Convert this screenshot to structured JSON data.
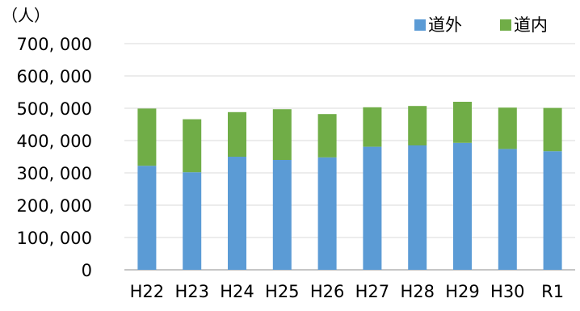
{
  "chart_data": {
    "type": "bar",
    "stacked": true,
    "unit_label": "（人）",
    "categories": [
      "H22",
      "H23",
      "H24",
      "H25",
      "H26",
      "H27",
      "H28",
      "H29",
      "H30",
      "R1"
    ],
    "series": [
      {
        "name": "道外",
        "color": "#5b9bd5",
        "values": [
          322000,
          302000,
          350000,
          340000,
          348000,
          381000,
          385000,
          393000,
          374000,
          367000
        ]
      },
      {
        "name": "道内",
        "color": "#70ad47",
        "values": [
          177000,
          164000,
          138000,
          157000,
          134000,
          122000,
          122000,
          127000,
          128000,
          134000
        ]
      }
    ],
    "ylim": [
      0,
      700000
    ],
    "yticks": [
      0,
      100000,
      200000,
      300000,
      400000,
      500000,
      600000,
      700000
    ],
    "ytick_labels": [
      "0",
      "100, 000",
      "200, 000",
      "300, 000",
      "400, 000",
      "500, 000",
      "600, 000",
      "700, 000"
    ],
    "grid": true,
    "legend_position": "top-right"
  }
}
